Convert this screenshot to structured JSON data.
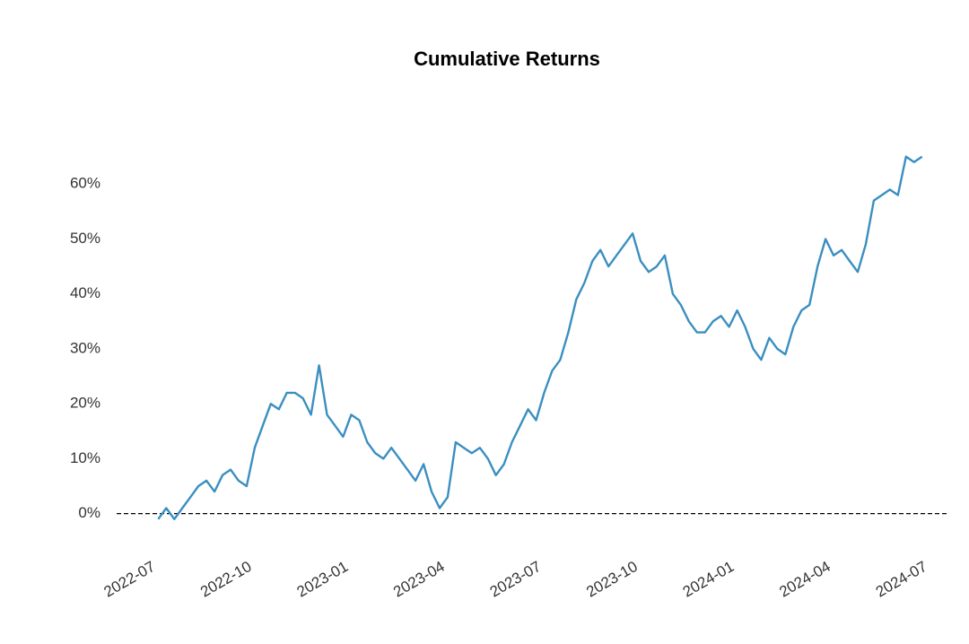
{
  "chart_data": {
    "type": "line",
    "title": "Cumulative Returns",
    "x": [
      "2022-07",
      "2022-07",
      "2022-07",
      "2022-07",
      "2022-08",
      "2022-08",
      "2022-08",
      "2022-08",
      "2022-09",
      "2022-09",
      "2022-09",
      "2022-09",
      "2022-10",
      "2022-10",
      "2022-10",
      "2022-10",
      "2022-11",
      "2022-11",
      "2022-11",
      "2022-11",
      "2022-12",
      "2022-12",
      "2022-12",
      "2022-12",
      "2023-01",
      "2023-01",
      "2023-01",
      "2023-01",
      "2023-02",
      "2023-02",
      "2023-02",
      "2023-02",
      "2023-03",
      "2023-03",
      "2023-03",
      "2023-03",
      "2023-04",
      "2023-04",
      "2023-04",
      "2023-04",
      "2023-05",
      "2023-05",
      "2023-05",
      "2023-05",
      "2023-06",
      "2023-06",
      "2023-06",
      "2023-06",
      "2023-07",
      "2023-07",
      "2023-07",
      "2023-07",
      "2023-08",
      "2023-08",
      "2023-08",
      "2023-08",
      "2023-09",
      "2023-09",
      "2023-09",
      "2023-09",
      "2023-10",
      "2023-10",
      "2023-10",
      "2023-10",
      "2023-11",
      "2023-11",
      "2023-11",
      "2023-11",
      "2023-12",
      "2023-12",
      "2023-12",
      "2023-12",
      "2024-01",
      "2024-01",
      "2024-01",
      "2024-01",
      "2024-02",
      "2024-02",
      "2024-02",
      "2024-02",
      "2024-03",
      "2024-03",
      "2024-03",
      "2024-03",
      "2024-04",
      "2024-04",
      "2024-04",
      "2024-04",
      "2024-05",
      "2024-05",
      "2024-05",
      "2024-05",
      "2024-06",
      "2024-06",
      "2024-06",
      "2024-06"
    ],
    "series": [
      {
        "name": "Cumulative Returns",
        "color": "#3a8fc0",
        "values": [
          -1,
          1,
          -1,
          1,
          3,
          5,
          6,
          4,
          7,
          8,
          6,
          5,
          12,
          16,
          20,
          19,
          22,
          22,
          21,
          18,
          27,
          18,
          16,
          14,
          18,
          17,
          13,
          11,
          10,
          12,
          10,
          8,
          6,
          9,
          4,
          1,
          3,
          13,
          12,
          11,
          12,
          10,
          7,
          9,
          13,
          16,
          19,
          17,
          22,
          26,
          28,
          33,
          39,
          42,
          46,
          48,
          45,
          47,
          49,
          51,
          46,
          44,
          45,
          47,
          40,
          38,
          35,
          33,
          33,
          35,
          36,
          34,
          37,
          34,
          30,
          28,
          32,
          30,
          29,
          34,
          37,
          38,
          45,
          50,
          47,
          48,
          46,
          44,
          49,
          57,
          58,
          59,
          58,
          65,
          64,
          65
        ]
      }
    ],
    "xlim": [
      "2022-06",
      "2024-08"
    ],
    "xticks": [
      "2022-07",
      "2022-10",
      "2023-01",
      "2023-04",
      "2023-07",
      "2023-10",
      "2024-01",
      "2024-04",
      "2024-07"
    ],
    "ylim": [
      -3,
      70
    ],
    "yticks": [
      {
        "value": 0,
        "label": "0%"
      },
      {
        "value": 10,
        "label": "10%"
      },
      {
        "value": 20,
        "label": "20%"
      },
      {
        "value": 30,
        "label": "30%"
      },
      {
        "value": 40,
        "label": "40%"
      },
      {
        "value": 50,
        "label": "50%"
      },
      {
        "value": 60,
        "label": "60%"
      }
    ],
    "hline": 0
  }
}
